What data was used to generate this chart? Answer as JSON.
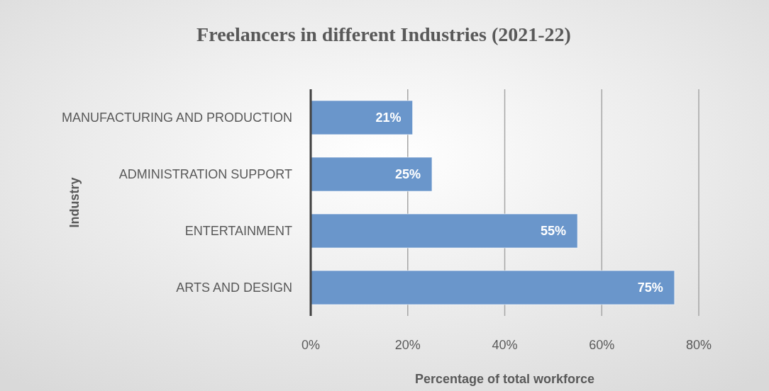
{
  "chart_data": {
    "type": "bar",
    "orientation": "horizontal",
    "title": "Freelancers in different Industries (2021-22)",
    "xlabel": "Percentage of total  workforce",
    "ylabel": "Industry",
    "categories": [
      "MANUFACTURING AND PRODUCTION",
      "ADMINISTRATION SUPPORT",
      "ENTERTAINMENT",
      "ARTS AND DESIGN"
    ],
    "values": [
      21,
      25,
      55,
      75
    ],
    "value_labels": [
      "21%",
      "25%",
      "55%",
      "75%"
    ],
    "color": "#6a96cb",
    "xlim": [
      0,
      80
    ],
    "xticks": [
      {
        "value": 0,
        "label": "0%"
      },
      {
        "value": 20,
        "label": "20%"
      },
      {
        "value": 40,
        "label": "40%"
      },
      {
        "value": 60,
        "label": "60%"
      },
      {
        "value": 80,
        "label": "80%"
      }
    ],
    "grid": "x"
  }
}
